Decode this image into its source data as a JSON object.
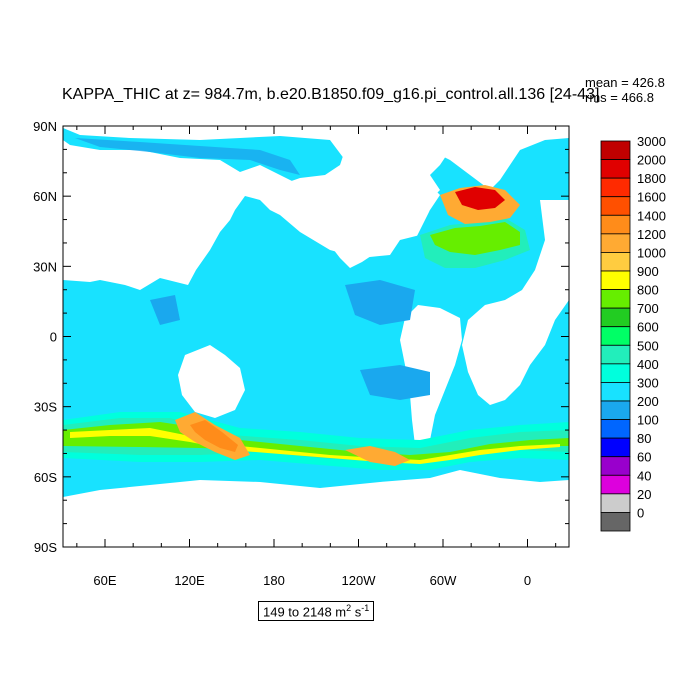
{
  "title": "KAPPA_THIC at z= 984.7m, b.e20.B1850.f09_g16.pi_control.all.136 [24-43]",
  "stats": {
    "mean": "mean = 426.8",
    "rms": "rms = 466.8"
  },
  "range_label": {
    "text": "149 to 2148 m",
    "sup": "2",
    "unit_tail": " s",
    "sup2": "-1"
  },
  "axes": {
    "y_ticks": [
      "90N",
      "60N",
      "30N",
      "0",
      "30S",
      "60S",
      "90S"
    ],
    "x_ticks": [
      "60E",
      "120E",
      "180",
      "120W",
      "60W",
      "0"
    ]
  },
  "colorbar": {
    "labels": [
      "3000",
      "2000",
      "1800",
      "1600",
      "1400",
      "1200",
      "1000",
      "900",
      "800",
      "700",
      "600",
      "500",
      "400",
      "300",
      "200",
      "100",
      "80",
      "60",
      "40",
      "20",
      "0"
    ],
    "colors": [
      "#c00000",
      "#e00000",
      "#ff2a00",
      "#ff5000",
      "#ff8c1a",
      "#ffaa33",
      "#ffcc40",
      "#ffff00",
      "#66ee00",
      "#22cc22",
      "#00ff66",
      "#22eebb",
      "#00ffdd",
      "#18e2ff",
      "#1aa8ee",
      "#0066ff",
      "#0000ff",
      "#9900cc",
      "#dd00dd",
      "#cccccc",
      "#666666"
    ]
  },
  "colors": {
    "ocean_main": "#18e2ff",
    "ocean_low": "#1aa8ee",
    "land": "#ffffff"
  }
}
